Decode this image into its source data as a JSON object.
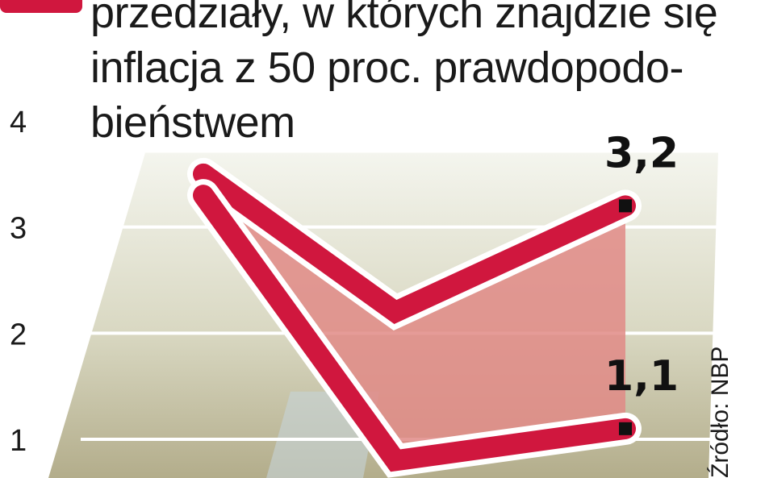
{
  "legend": {
    "color": "#d0173e",
    "lines": [
      "przedziały, w których znajdzie się",
      "inflacja z 50 proc. prawdopodo-",
      "bieństwem"
    ]
  },
  "source": "Źródło: NBP",
  "colors": {
    "band": "#d0173e",
    "band_fill": "#e08a86",
    "bg_light": "#eef0e6",
    "bg_dark": "#b9b494",
    "accent_blue": "#c7d4d8"
  },
  "chart_data": {
    "type": "area",
    "title": "",
    "xlabel": "",
    "ylabel": "",
    "yticks": [
      "1",
      "2",
      "3",
      "4"
    ],
    "ylim": [
      0.65,
      4.45
    ],
    "x": [
      0,
      1,
      2
    ],
    "series": [
      {
        "role": "upper",
        "values": [
          3.5,
          2.2,
          3.2
        ]
      },
      {
        "role": "lower",
        "values": [
          3.3,
          0.8,
          1.1
        ]
      }
    ],
    "data_labels": [
      {
        "series": "upper",
        "point": 2,
        "text": "3,2"
      },
      {
        "series": "lower",
        "point": 2,
        "text": "1,1"
      }
    ],
    "grid": true,
    "legend_position": "top"
  }
}
